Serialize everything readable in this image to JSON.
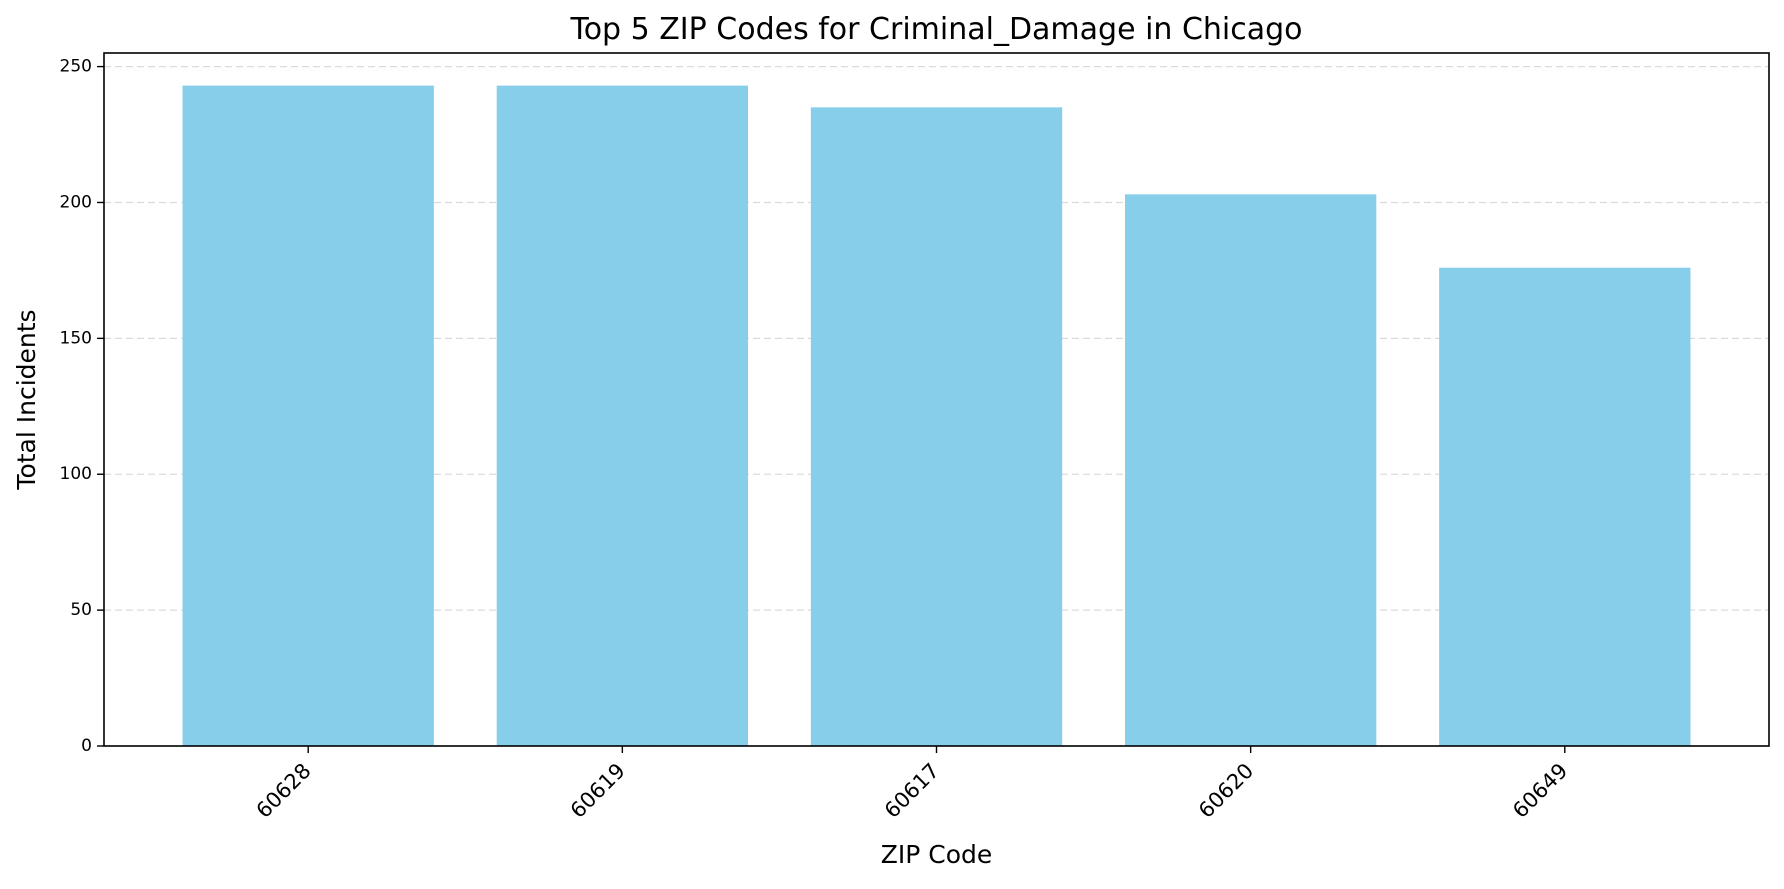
{
  "chart_data": {
    "type": "bar",
    "title": "Top 5 ZIP Codes for Criminal_Damage in Chicago",
    "xlabel": "ZIP Code",
    "ylabel": "Total Incidents",
    "categories": [
      "60628",
      "60619",
      "60617",
      "60620",
      "60649"
    ],
    "values": [
      243,
      243,
      235,
      203,
      176
    ],
    "ylim": [
      0,
      255
    ],
    "yticks": [
      0,
      50,
      100,
      150,
      200,
      250
    ],
    "grid": "y-dashed",
    "bar_color": "#87CEEB",
    "xtick_rotation": 45
  }
}
